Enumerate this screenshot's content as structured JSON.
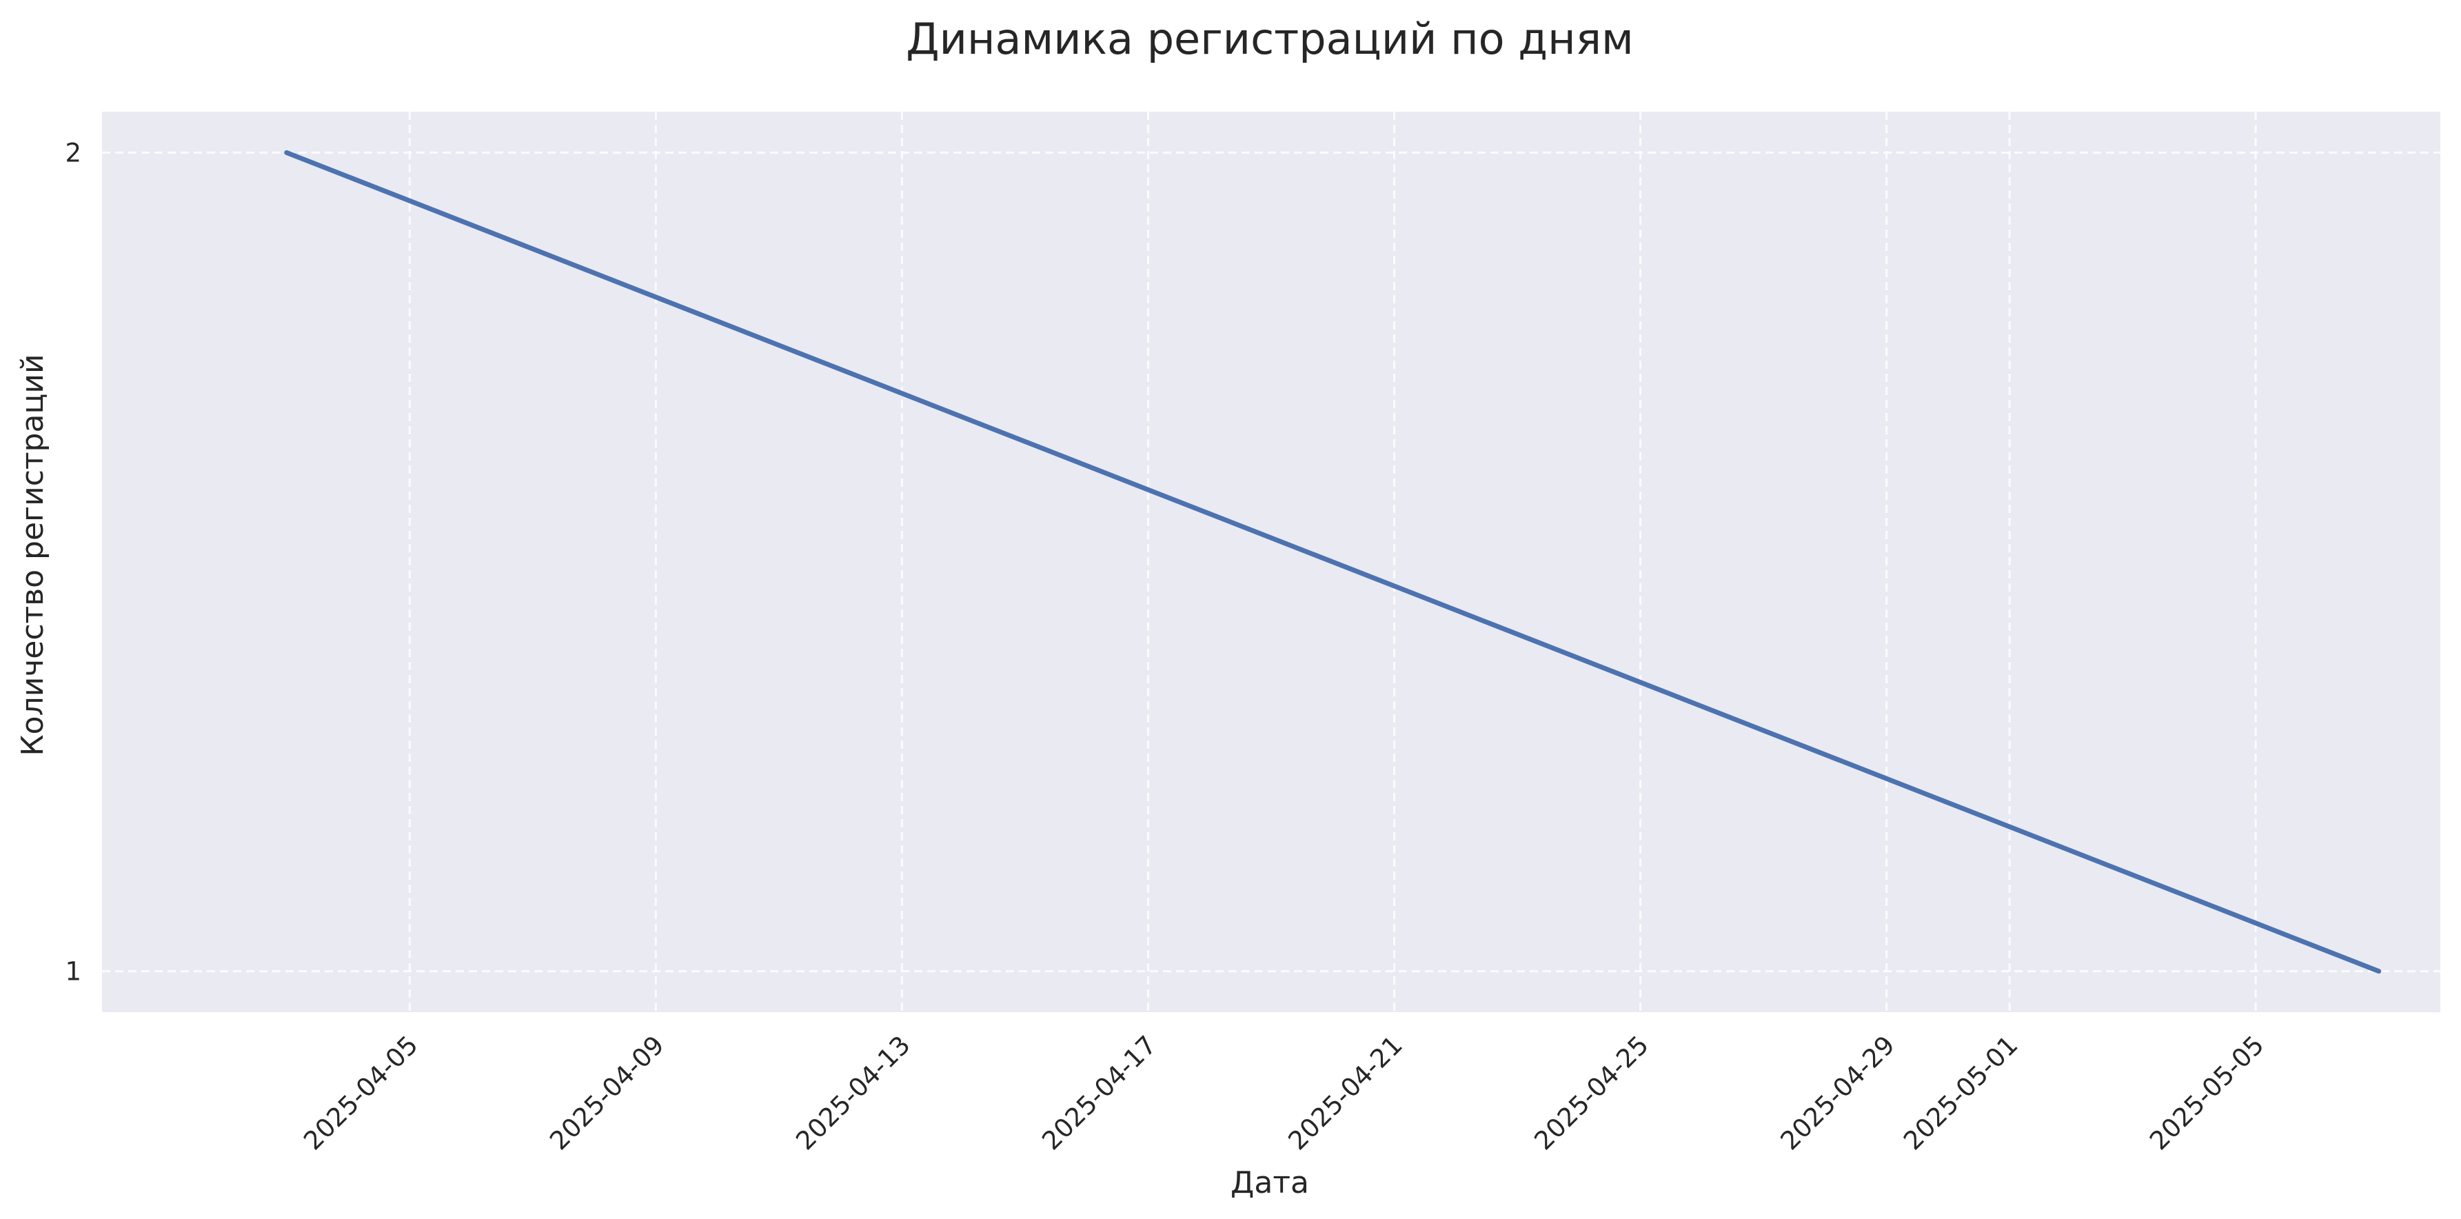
{
  "chart_data": {
    "type": "line",
    "title": "Динамика регистраций по дням",
    "xlabel": "Дата",
    "ylabel": "Количество регистраций",
    "x_ticks": [
      "2025-04-05",
      "2025-04-09",
      "2025-04-13",
      "2025-04-17",
      "2025-04-21",
      "2025-04-25",
      "2025-04-29",
      "2025-05-01",
      "2025-05-05"
    ],
    "y_ticks": [
      1,
      2
    ],
    "xlim": [
      "2025-03-31",
      "2025-05-08"
    ],
    "ylim": [
      0.95,
      2.05
    ],
    "grid": true,
    "series": [
      {
        "x": [
          "2025-04-03",
          "2025-05-07"
        ],
        "y": [
          2,
          1
        ],
        "color": "#4c72b0"
      }
    ],
    "background_color": "#eaeaf2"
  }
}
